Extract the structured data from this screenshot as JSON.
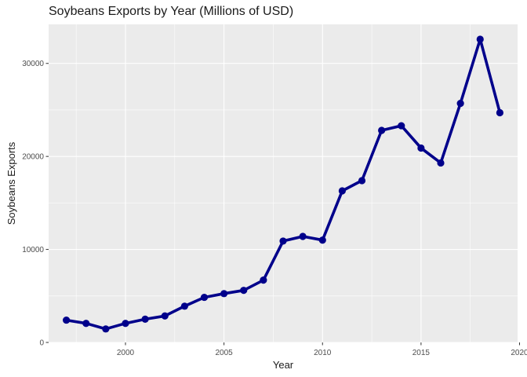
{
  "chart_data": {
    "type": "line",
    "title": "Soybeans Exports by Year (Millions of USD)",
    "xlabel": "Year",
    "ylabel": "Soybeans Exports",
    "xlim": [
      1996.1,
      2019.9
    ],
    "ylim": [
      0,
      34200
    ],
    "x_ticks": [
      2000,
      2005,
      2010,
      2015,
      2020
    ],
    "x_tick_labels": [
      "2000",
      "2005",
      "2010",
      "2015",
      "2020"
    ],
    "y_ticks": [
      0,
      10000,
      20000,
      30000
    ],
    "y_tick_labels": [
      "0",
      "10000",
      "20000",
      "30000"
    ],
    "grid": true,
    "legend": "none",
    "line_color": "#00008B",
    "panel_color": "#EBEBEB",
    "grid_color": "#FFFFFF",
    "series": [
      {
        "x": [
          1997,
          1998,
          1999,
          2000,
          2001,
          2002,
          2003,
          2004,
          2005,
          2006,
          2007,
          2008,
          2009,
          2010,
          2011,
          2012,
          2013,
          2014,
          2015,
          2016,
          2017,
          2018,
          2019
        ],
        "values": [
          2400,
          2050,
          1450,
          2050,
          2500,
          2850,
          3900,
          4850,
          5250,
          5600,
          6700,
          10900,
          11400,
          11000,
          16300,
          17400,
          22800,
          23300,
          20900,
          19300,
          25700,
          32600,
          24700
        ]
      }
    ]
  }
}
